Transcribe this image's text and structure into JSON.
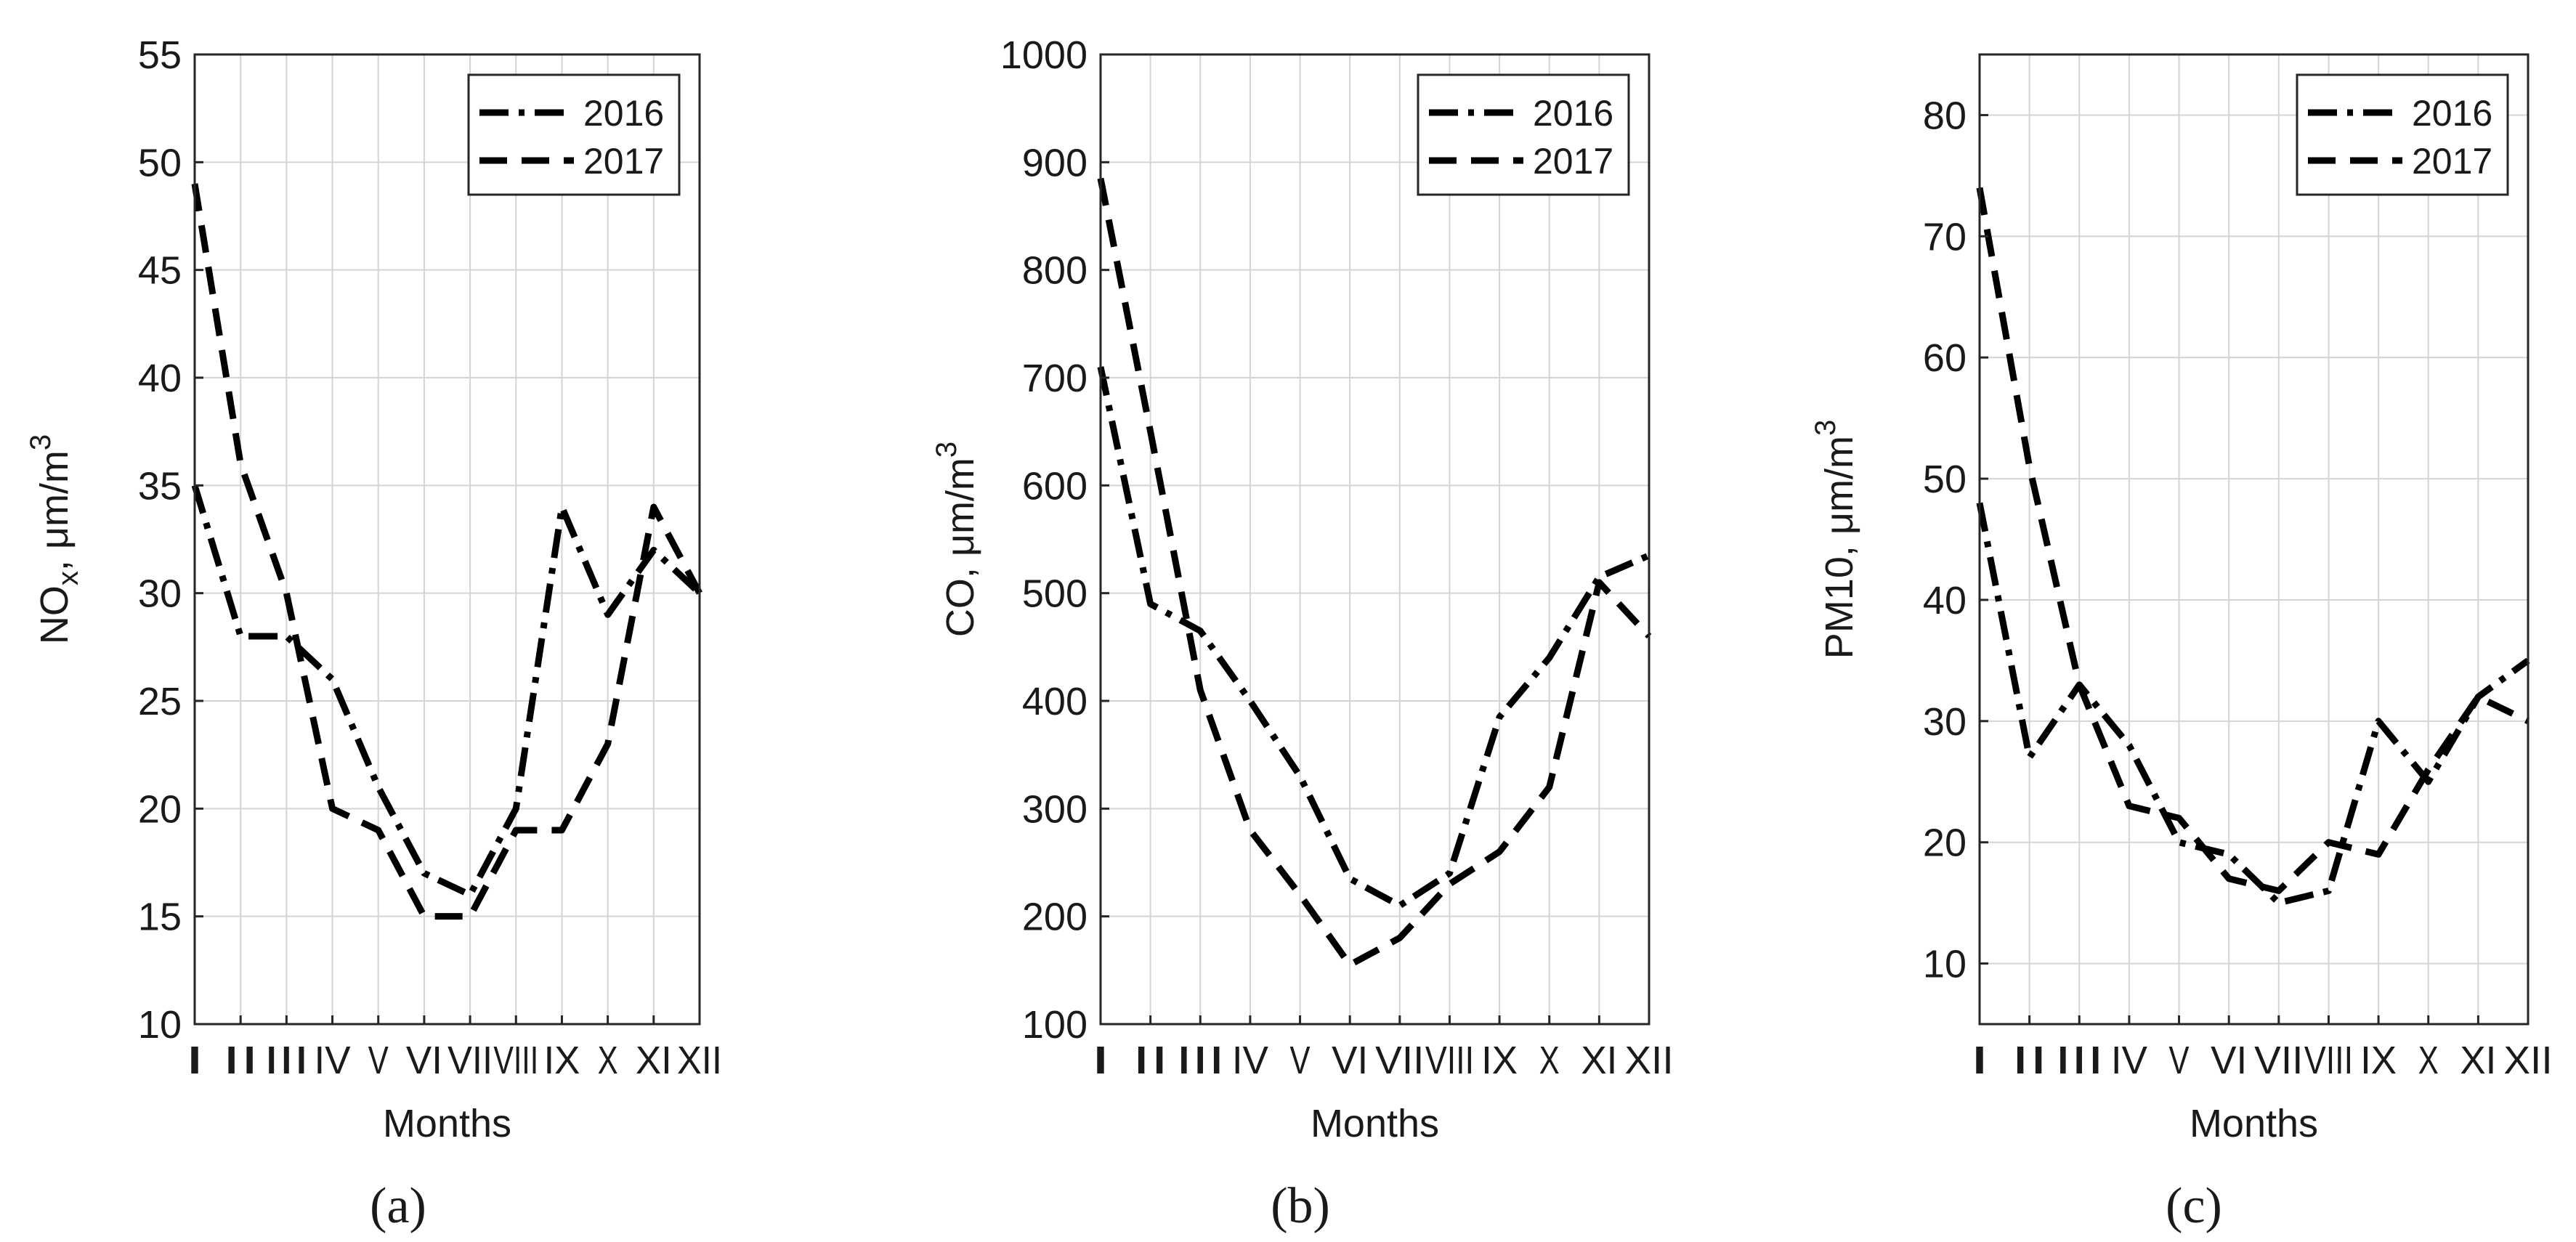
{
  "chart_data": [
    {
      "type": "line",
      "panel_label": "(a)",
      "xlabel": "Months",
      "ylabel_main": "NO",
      "ylabel_sub": "x",
      "ylabel_tail": ", μm/m",
      "ylabel_sup": "3",
      "categories": [
        "I",
        "II",
        "III",
        "IV",
        "V",
        "VI",
        "VII",
        "VIII",
        "IX",
        "X",
        "XI",
        "XII"
      ],
      "ylim": [
        10,
        55
      ],
      "yticks": [
        10,
        15,
        20,
        25,
        30,
        35,
        40,
        45,
        50,
        55
      ],
      "grid": true,
      "legend_position": "top-right",
      "series": [
        {
          "name": "2016",
          "style": "dash-dot",
          "values": [
            35,
            28,
            28,
            26,
            21,
            17,
            16,
            20,
            34,
            29,
            32,
            30
          ]
        },
        {
          "name": "2017",
          "style": "dashed",
          "values": [
            49,
            36,
            30,
            20,
            19,
            15,
            15,
            19,
            19,
            23,
            34,
            30
          ]
        }
      ]
    },
    {
      "type": "line",
      "panel_label": "(b)",
      "xlabel": "Months",
      "ylabel_main": "CO, μm/m",
      "ylabel_sub": "",
      "ylabel_tail": "",
      "ylabel_sup": "3",
      "categories": [
        "I",
        "II",
        "III",
        "IV",
        "V",
        "VI",
        "VII",
        "VIII",
        "IX",
        "X",
        "XI",
        "XII"
      ],
      "ylim": [
        100,
        1000
      ],
      "yticks": [
        100,
        200,
        300,
        400,
        500,
        600,
        700,
        800,
        900,
        1000
      ],
      "grid": true,
      "legend_position": "top-right",
      "series": [
        {
          "name": "2016",
          "style": "dash-dot",
          "values": [
            710,
            490,
            465,
            400,
            330,
            235,
            210,
            240,
            385,
            440,
            515,
            535
          ]
        },
        {
          "name": "2017",
          "style": "dashed",
          "values": [
            885,
            650,
            410,
            280,
            220,
            155,
            180,
            230,
            260,
            320,
            510,
            460
          ]
        }
      ]
    },
    {
      "type": "line",
      "panel_label": "(c)",
      "xlabel": "Months",
      "ylabel_main": "PM10, μm/m",
      "ylabel_sub": "",
      "ylabel_tail": "",
      "ylabel_sup": "3",
      "categories": [
        "I",
        "II",
        "III",
        "IV",
        "V",
        "VI",
        "VII",
        "VIII",
        "IX",
        "X",
        "XI",
        "XII"
      ],
      "ylim": [
        5,
        85
      ],
      "yticks": [
        10,
        20,
        30,
        40,
        50,
        60,
        70,
        80
      ],
      "grid": true,
      "legend_position": "top-right",
      "series": [
        {
          "name": "2016",
          "style": "dash-dot",
          "values": [
            48,
            27,
            33,
            28,
            20,
            19,
            15,
            16,
            30,
            25,
            32,
            35
          ]
        },
        {
          "name": "2017",
          "style": "dashed",
          "values": [
            74,
            51,
            33,
            23,
            22,
            17,
            16,
            20,
            19,
            26,
            32,
            30
          ]
        }
      ]
    }
  ]
}
